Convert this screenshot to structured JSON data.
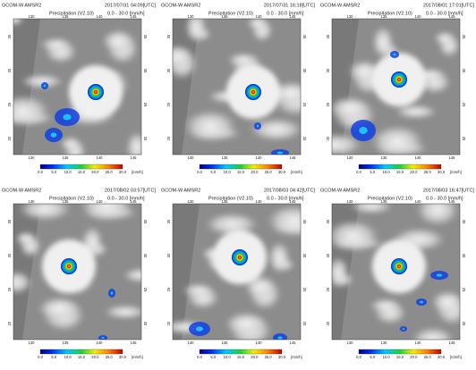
{
  "panels": [
    {
      "satellite": "GCOM-W AMSR2",
      "time": "2017/07/31  04:09[UTC]",
      "product": "Precipitation (V2.10)",
      "range": "0.0 - 30.0 [mm/h]"
    },
    {
      "satellite": "GCOM-W AMSR2",
      "time": "2017/07/31  16:18[UTC]",
      "product": "Precipitation (V2.10)",
      "range": "0.0 - 30.0 [mm/h]"
    },
    {
      "satellite": "GCOM-W AMSR2",
      "time": "2017/08/01  17:01[UTC]",
      "product": "Precipitation (V2.10)",
      "range": "0.0 - 30.0 [mm/h]"
    },
    {
      "satellite": "GCOM-W AMSR2",
      "time": "2017/08/02  03:57[UTC]",
      "product": "Precipitation (V2.10)",
      "range": "0.0 - 30.0 [mm/h]"
    },
    {
      "satellite": "GCOM-W AMSR2",
      "time": "2017/08/03  04:42[UTC]",
      "product": "Precipitation (V2.10)",
      "range": "0.0 - 30.0 [mm/h]"
    },
    {
      "satellite": "GCOM-W AMSR2",
      "time": "2017/08/03  16:47[UTC]",
      "product": "Precipitation (V2.10)",
      "range": "0.0 - 30.0 [mm/h]"
    }
  ],
  "common": {
    "colorbar_ticks": [
      "0.0",
      "5.0",
      "10.0",
      "15.0",
      "20.0",
      "25.0",
      "30.0"
    ],
    "colorbar_unit": "[mm/h]",
    "lon_ticks": [
      "130",
      "135",
      "140",
      "145"
    ],
    "lat_ticks": [
      "35",
      "30",
      "25",
      "20"
    ]
  }
}
